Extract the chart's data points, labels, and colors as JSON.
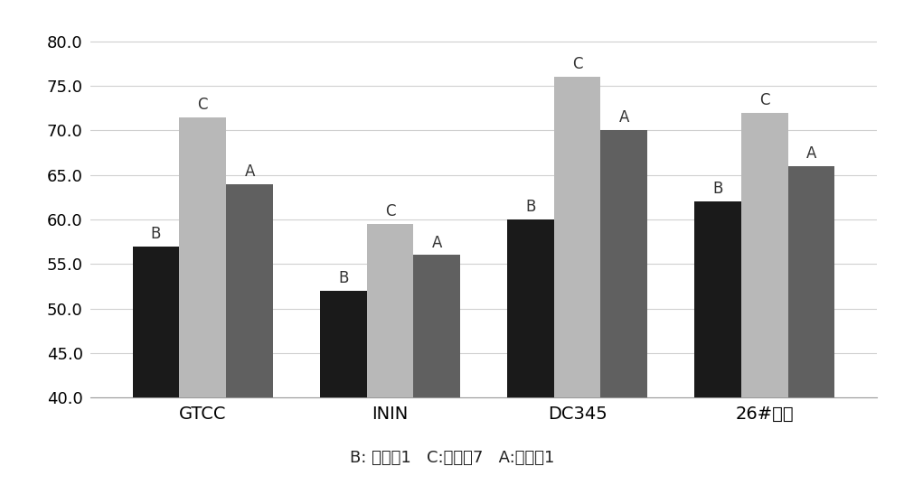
{
  "categories": [
    "GTCC",
    "ININ",
    "DC345",
    "26#白油"
  ],
  "series": {
    "B": [
      57.0,
      52.0,
      60.0,
      62.0
    ],
    "C": [
      71.5,
      59.5,
      76.0,
      72.0
    ],
    "A": [
      64.0,
      56.0,
      70.0,
      66.0
    ]
  },
  "bar_colors": {
    "B": "#1a1a1a",
    "C": "#b8b8b8",
    "A": "#606060"
  },
  "ylim": [
    40.0,
    83.0
  ],
  "yticks": [
    40.0,
    45.0,
    50.0,
    55.0,
    60.0,
    65.0,
    70.0,
    75.0,
    80.0
  ],
  "caption": "B: 对比例1   C:对比例7   A:实施例1",
  "background_color": "#ffffff",
  "grid_color": "#d0d0d0",
  "bar_width": 0.25,
  "label_fontsize": 12,
  "caption_fontsize": 13,
  "tick_fontsize": 13,
  "category_fontsize": 14
}
